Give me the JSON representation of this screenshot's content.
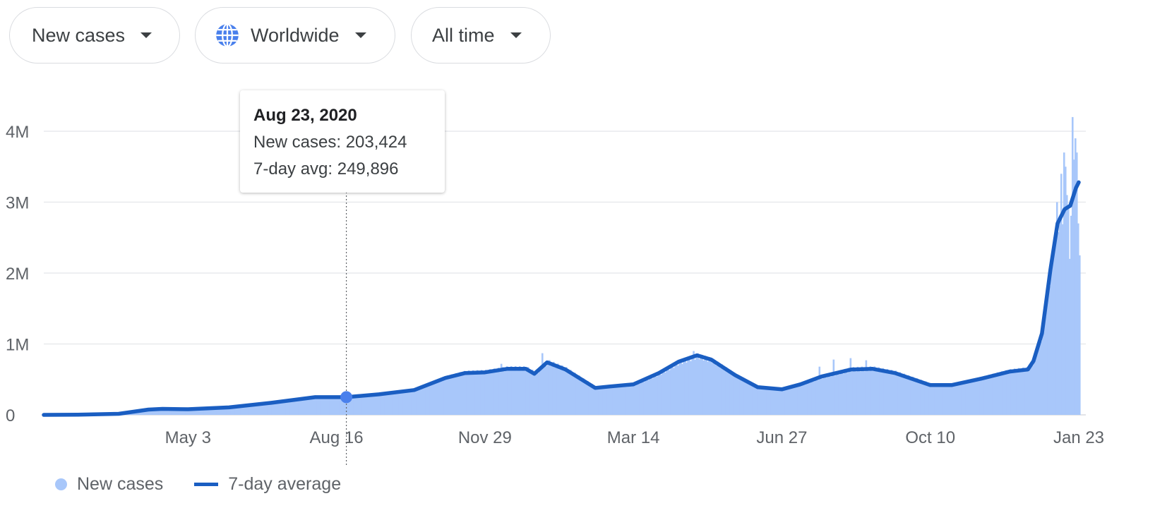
{
  "filters": {
    "metric": {
      "label": "New cases"
    },
    "region": {
      "label": "Worldwide",
      "icon": "globe-icon"
    },
    "range": {
      "label": "All time"
    }
  },
  "tooltip": {
    "date": "Aug 23, 2020",
    "new_cases": "New cases: 203,424",
    "avg": "7-day avg: 249,896"
  },
  "legend": {
    "bars_label": "New cases",
    "line_label": "7-day average"
  },
  "colors": {
    "bars": "#a8c7fa",
    "line": "#1a5ec2",
    "grid": "#e8eaed",
    "axis_text": "#5f6368"
  },
  "chart_data": {
    "type": "bar",
    "title": "",
    "xlabel": "",
    "ylabel": "",
    "x_start": "2020-01-22",
    "x_end": "2022-01-23",
    "ylim": [
      0,
      4500000
    ],
    "y_ticks": [
      {
        "value": 0,
        "label": "0"
      },
      {
        "value": 1000000,
        "label": "1M"
      },
      {
        "value": 2000000,
        "label": "2M"
      },
      {
        "value": 3000000,
        "label": "3M"
      },
      {
        "value": 4000000,
        "label": "4M"
      }
    ],
    "x_ticks": [
      {
        "date": "2020-05-03",
        "label": "May 3"
      },
      {
        "date": "2020-08-16",
        "label": "Aug 16"
      },
      {
        "date": "2020-11-29",
        "label": "Nov 29"
      },
      {
        "date": "2021-03-14",
        "label": "Mar 14"
      },
      {
        "date": "2021-06-27",
        "label": "Jun 27"
      },
      {
        "date": "2021-10-10",
        "label": "Oct 10"
      },
      {
        "date": "2022-01-23",
        "label": "Jan 23"
      }
    ],
    "series": [
      {
        "name": "7-day average",
        "type": "line",
        "points": [
          [
            "2020-01-22",
            0
          ],
          [
            "2020-02-15",
            3000
          ],
          [
            "2020-03-15",
            15000
          ],
          [
            "2020-04-05",
            75000
          ],
          [
            "2020-04-15",
            85000
          ],
          [
            "2020-05-03",
            80000
          ],
          [
            "2020-06-01",
            105000
          ],
          [
            "2020-07-01",
            170000
          ],
          [
            "2020-08-01",
            250000
          ],
          [
            "2020-08-23",
            249896
          ],
          [
            "2020-09-15",
            290000
          ],
          [
            "2020-10-10",
            350000
          ],
          [
            "2020-11-01",
            520000
          ],
          [
            "2020-11-15",
            590000
          ],
          [
            "2020-11-29",
            600000
          ],
          [
            "2020-12-15",
            650000
          ],
          [
            "2020-12-28",
            650000
          ],
          [
            "2021-01-03",
            580000
          ],
          [
            "2021-01-12",
            740000
          ],
          [
            "2021-01-25",
            640000
          ],
          [
            "2021-02-15",
            380000
          ],
          [
            "2021-02-25",
            400000
          ],
          [
            "2021-03-14",
            430000
          ],
          [
            "2021-04-01",
            590000
          ],
          [
            "2021-04-15",
            750000
          ],
          [
            "2021-04-28",
            840000
          ],
          [
            "2021-05-08",
            780000
          ],
          [
            "2021-05-25",
            560000
          ],
          [
            "2021-06-10",
            390000
          ],
          [
            "2021-06-27",
            360000
          ],
          [
            "2021-07-10",
            430000
          ],
          [
            "2021-07-25",
            540000
          ],
          [
            "2021-08-15",
            640000
          ],
          [
            "2021-08-30",
            650000
          ],
          [
            "2021-09-15",
            590000
          ],
          [
            "2021-10-10",
            420000
          ],
          [
            "2021-10-25",
            420000
          ],
          [
            "2021-11-15",
            510000
          ],
          [
            "2021-12-05",
            610000
          ],
          [
            "2021-12-18",
            640000
          ],
          [
            "2021-12-22",
            760000
          ],
          [
            "2021-12-28",
            1150000
          ],
          [
            "2022-01-03",
            2050000
          ],
          [
            "2022-01-08",
            2700000
          ],
          [
            "2022-01-13",
            2900000
          ],
          [
            "2022-01-17",
            2950000
          ],
          [
            "2022-01-21",
            3200000
          ],
          [
            "2022-01-23",
            3280000
          ]
        ]
      },
      {
        "name": "New cases",
        "type": "bar",
        "spikes": [
          [
            "2020-08-23",
            203424
          ],
          [
            "2020-12-10",
            720000
          ],
          [
            "2021-01-08",
            870000
          ],
          [
            "2021-04-25",
            900000
          ],
          [
            "2021-07-23",
            680000
          ],
          [
            "2021-08-02",
            780000
          ],
          [
            "2021-08-14",
            800000
          ],
          [
            "2021-08-25",
            770000
          ],
          [
            "2021-12-29",
            1400000
          ],
          [
            "2022-01-01",
            1950000
          ],
          [
            "2022-01-05",
            2500000
          ],
          [
            "2022-01-07",
            3000000
          ],
          [
            "2022-01-10",
            3400000
          ],
          [
            "2022-01-12",
            3700000
          ],
          [
            "2022-01-13",
            3500000
          ],
          [
            "2022-01-14",
            3100000
          ],
          [
            "2022-01-16",
            2200000
          ],
          [
            "2022-01-18",
            4200000
          ],
          [
            "2022-01-19",
            3600000
          ],
          [
            "2022-01-20",
            3900000
          ],
          [
            "2022-01-21",
            3700000
          ],
          [
            "2022-01-22",
            2700000
          ],
          [
            "2022-01-23",
            2250000
          ]
        ]
      }
    ],
    "highlight": {
      "date": "2020-08-23",
      "value": 249896
    }
  }
}
